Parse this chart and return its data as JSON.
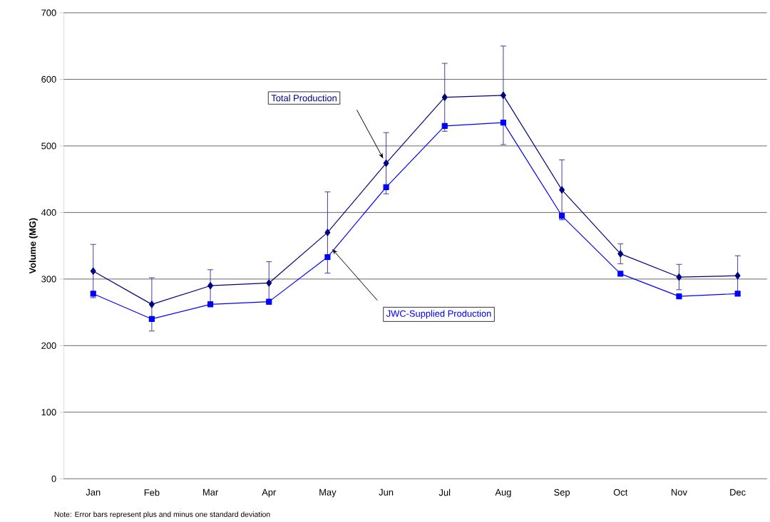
{
  "chart_data": {
    "type": "line",
    "ylabel": "Volume (MG)",
    "categories": [
      "Jan",
      "Feb",
      "Mar",
      "Apr",
      "May",
      "Jun",
      "Jul",
      "Aug",
      "Sep",
      "Oct",
      "Nov",
      "Dec"
    ],
    "series": [
      {
        "name": "Total Production",
        "color": "#000080",
        "marker": "diamond",
        "values": [
          312,
          262,
          290,
          294,
          370,
          474,
          573,
          576,
          434,
          338,
          303,
          305
        ],
        "errors": [
          40,
          40,
          24,
          32,
          61,
          46,
          51,
          74,
          45,
          15,
          19,
          30
        ]
      },
      {
        "name": "JWC-Supplied Production",
        "color": "#0000ff",
        "marker": "square",
        "values": [
          278,
          240,
          262,
          266,
          333,
          438,
          530,
          535,
          395,
          308,
          274,
          278
        ]
      }
    ],
    "ylim": [
      0,
      700
    ],
    "yticks": [
      0,
      100,
      200,
      300,
      400,
      500,
      600,
      700
    ],
    "grid": "y",
    "legend": false,
    "annotations": [
      "Note: Error bars represent plus and minus one standard deviation"
    ]
  }
}
